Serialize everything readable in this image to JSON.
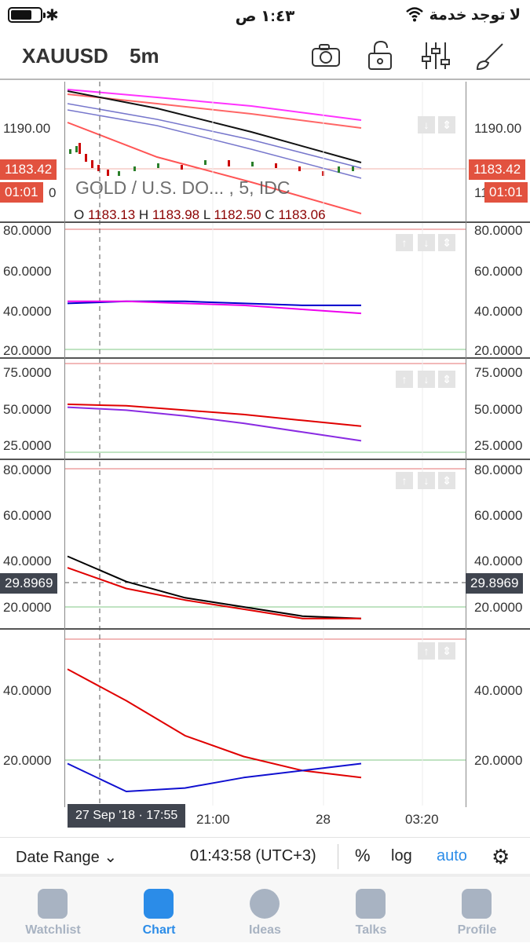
{
  "status_bar": {
    "time": "١:٤٣ ص",
    "carrier": "لا توجد خدمة",
    "bluetooth_glyph": "✱"
  },
  "header": {
    "symbol": "XAUUSD",
    "interval": "5m",
    "icons": [
      "camera-icon",
      "unlock-icon",
      "sliders-icon",
      "brush-icon"
    ]
  },
  "legend": {
    "title": "GOLD / U.S. DO... , 5, IDC",
    "ohlc": [
      {
        "k": "O",
        "v": "1183.13"
      },
      {
        "k": "H",
        "v": "1183.98"
      },
      {
        "k": "L",
        "v": "1182.50"
      },
      {
        "k": "C",
        "v": "1183.06"
      }
    ]
  },
  "price_pane": {
    "axis_label": "1190.00",
    "left_axis_label_partial": "0",
    "right_axis_label_partial": "11",
    "last_price": "1183.42",
    "countdown": "01:01"
  },
  "panes": [
    {
      "labels": [
        "80.0000",
        "60.0000",
        "40.0000",
        "20.0000"
      ]
    },
    {
      "labels": [
        "75.0000",
        "50.0000",
        "25.0000"
      ]
    },
    {
      "labels": [
        "80.0000",
        "60.0000",
        "40.0000",
        "20.0000"
      ],
      "crosshair_value": "29.8969"
    },
    {
      "labels": [
        "40.0000",
        "20.0000"
      ]
    }
  ],
  "x_axis": {
    "crosshair_time": "27 Sep '18 · 17:55",
    "ticks": [
      "21:00",
      "28",
      "03:20"
    ]
  },
  "toolbar": {
    "date_range": "Date Range",
    "clock": "01:43:58 (UTC+3)",
    "percent": "%",
    "log": "log",
    "auto": "auto"
  },
  "tabs": [
    {
      "label": "Watchlist",
      "icon": "list-icon",
      "active": false
    },
    {
      "label": "Chart",
      "icon": "chart-icon",
      "active": true
    },
    {
      "label": "Ideas",
      "icon": "lightbulb-icon",
      "active": false
    },
    {
      "label": "Talks",
      "icon": "chat-bubble-icon",
      "active": false
    },
    {
      "label": "Profile",
      "icon": "smiley-icon",
      "active": false
    }
  ],
  "colors": {
    "accent": "#2b8ce8",
    "price_tag": "#e2523f",
    "crosshair_tag": "#40454f"
  },
  "chart_data": {
    "type": "line",
    "pane_1_price": {
      "last": 1183.42,
      "ohlc": {
        "open": 1183.13,
        "high": 1183.98,
        "low": 1182.5,
        "close": 1183.06
      }
    },
    "pane_2": {
      "series": [
        {
          "color": "#0000cc",
          "values": [
            43,
            44,
            44,
            43,
            42,
            42
          ]
        },
        {
          "color": "#ee00ee",
          "values": [
            44,
            44,
            43,
            42,
            40,
            38
          ]
        }
      ]
    },
    "pane_3": {
      "series": [
        {
          "color": "#e00000",
          "values": [
            53,
            52,
            49,
            46,
            42,
            38
          ]
        },
        {
          "color": "#8a2be2",
          "values": [
            51,
            49,
            45,
            40,
            34,
            28
          ]
        }
      ]
    },
    "pane_4": {
      "series": [
        {
          "color": "#000000",
          "values": [
            42,
            31,
            24,
            20,
            16,
            15
          ]
        },
        {
          "color": "#e00000",
          "values": [
            37,
            28,
            23,
            19,
            15,
            15
          ]
        }
      ]
    },
    "pane_5": {
      "series": [
        {
          "color": "#e00000",
          "values": [
            46,
            37,
            27,
            21,
            17,
            15
          ]
        },
        {
          "color": "#1010d0",
          "values": [
            19,
            11,
            12,
            15,
            17,
            19
          ]
        }
      ]
    }
  }
}
